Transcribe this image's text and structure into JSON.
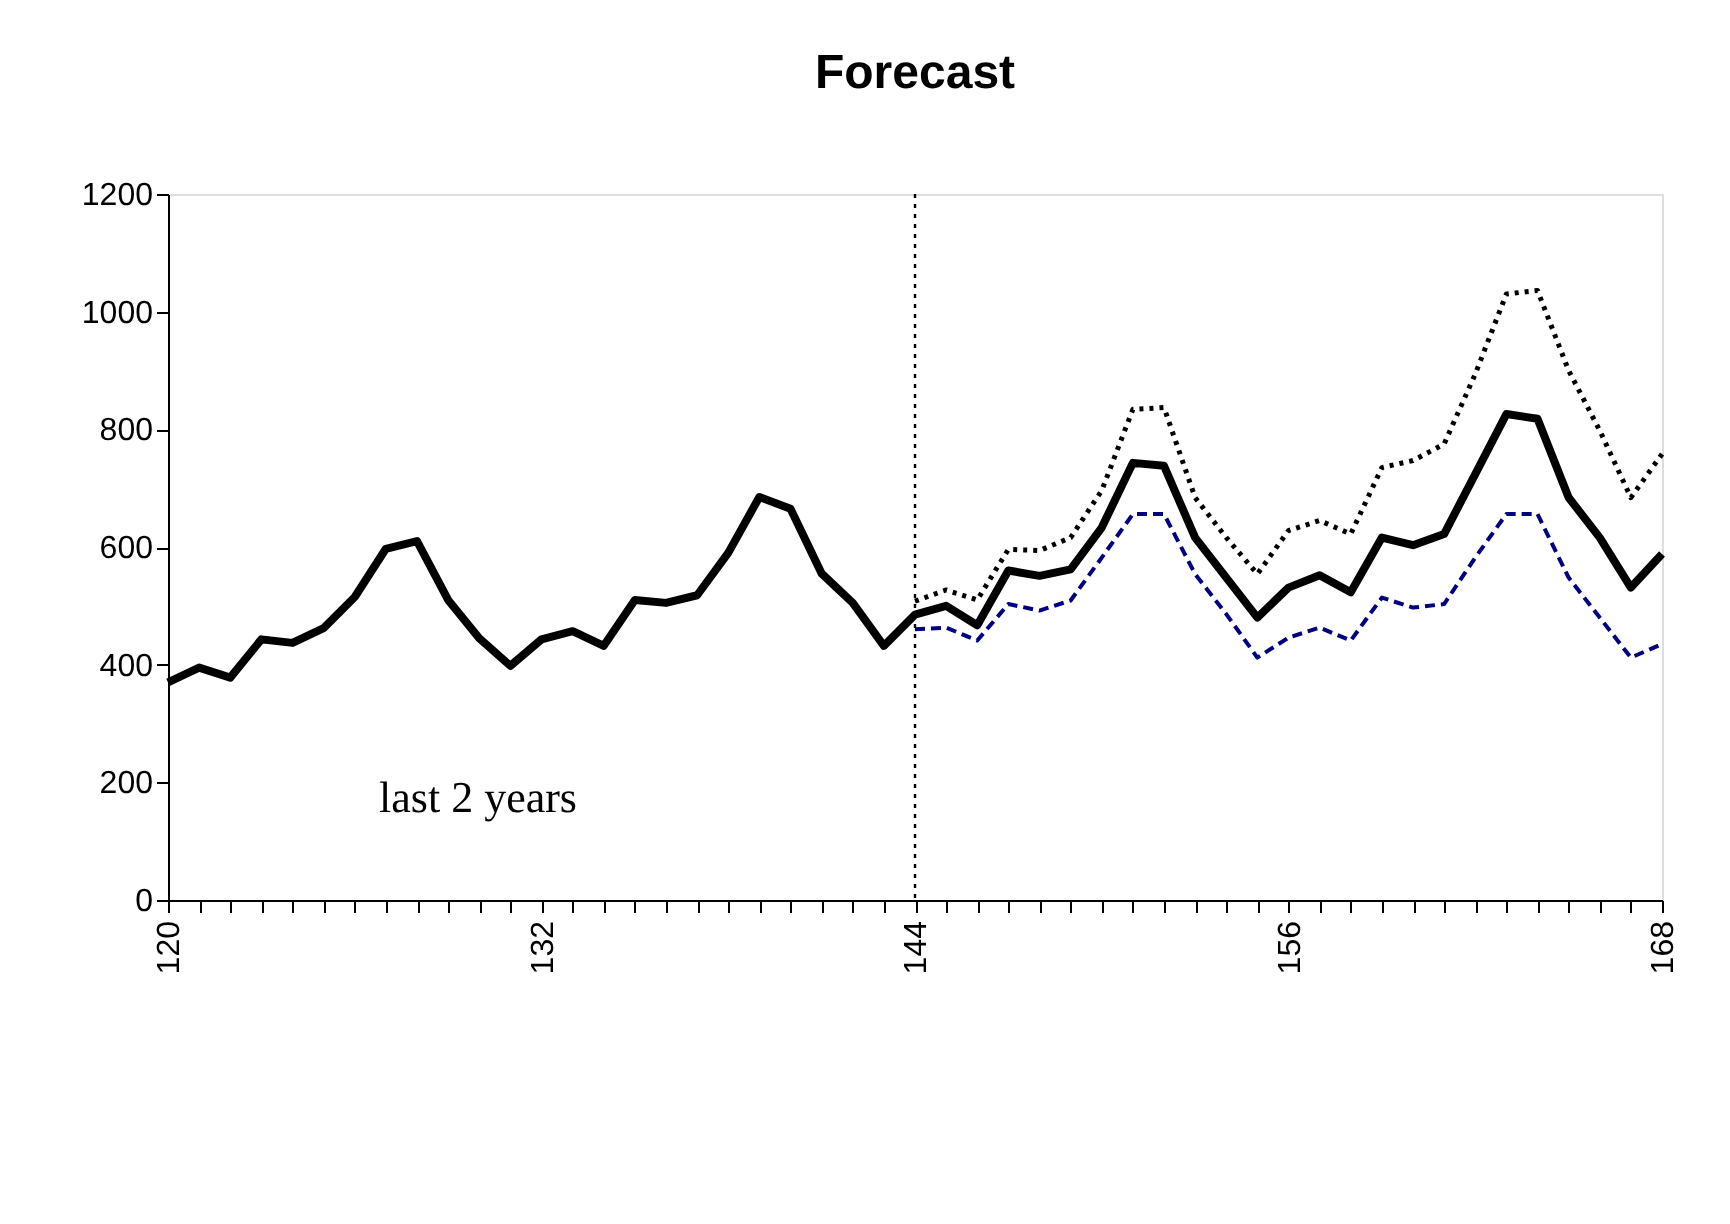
{
  "chart_data": {
    "type": "line",
    "title": "Forecast",
    "x": [
      120,
      121,
      122,
      123,
      124,
      125,
      126,
      127,
      128,
      129,
      130,
      131,
      132,
      133,
      134,
      135,
      136,
      137,
      138,
      139,
      140,
      141,
      142,
      143,
      144,
      145,
      146,
      147,
      148,
      149,
      150,
      151,
      152,
      153,
      154,
      155,
      156,
      157,
      158,
      159,
      160,
      161,
      162,
      163,
      164,
      165,
      166,
      167,
      168
    ],
    "series": [
      {
        "color": "#000000",
        "line_style": "solid",
        "values": [
          370,
          395,
          378,
          443,
          437,
          462,
          515,
          597,
          610,
          510,
          445,
          398,
          443,
          457,
          432,
          510,
          505,
          518,
          590,
          685,
          665,
          555,
          505,
          432,
          485,
          500,
          467,
          560,
          551,
          562,
          633,
          743,
          738,
          616,
          548,
          480,
          531,
          552,
          523,
          616,
          603,
          622,
          724,
          826,
          818,
          684,
          616,
          531,
          588
        ]
      },
      {
        "color": "#000000",
        "line_style": "dotted",
        "x": [
          144,
          145,
          146,
          147,
          148,
          149,
          150,
          151,
          152,
          153,
          154,
          155,
          156,
          157,
          158,
          159,
          160,
          161,
          162,
          163,
          164,
          165,
          166,
          167,
          168
        ],
        "values": [
          508,
          527,
          510,
          596,
          594,
          616,
          696,
          834,
          837,
          684,
          616,
          554,
          628,
          645,
          622,
          735,
          747,
          775,
          894,
          1030,
          1036,
          900,
          798,
          684,
          758
        ]
      },
      {
        "color": "#000080",
        "line_style": "dashed",
        "x": [
          144,
          145,
          146,
          147,
          148,
          149,
          150,
          151,
          152,
          153,
          154,
          155,
          156,
          157,
          158,
          159,
          160,
          161,
          162,
          163,
          164,
          165,
          166,
          167,
          168
        ],
        "values": [
          460,
          463,
          441,
          503,
          492,
          509,
          582,
          656,
          656,
          554,
          486,
          412,
          446,
          463,
          441,
          514,
          497,
          503,
          582,
          656,
          656,
          548,
          480,
          412,
          435
        ]
      }
    ],
    "xlim": [
      120,
      168
    ],
    "xticks": [
      120,
      {
        "value": 121,
        "label": null
      },
      {
        "value": 122,
        "label": null
      },
      {
        "value": 123,
        "label": null
      },
      {
        "value": 124,
        "label": null
      },
      {
        "value": 125,
        "label": null
      },
      {
        "value": 126,
        "label": null
      },
      {
        "value": 127,
        "label": null
      },
      {
        "value": 128,
        "label": null
      },
      {
        "value": 129,
        "label": null
      },
      {
        "value": 130,
        "label": null
      },
      {
        "value": 131,
        "label": null
      },
      132,
      {
        "value": 133,
        "label": null
      },
      {
        "value": 134,
        "label": null
      },
      {
        "value": 135,
        "label": null
      },
      {
        "value": 136,
        "label": null
      },
      {
        "value": 137,
        "label": null
      },
      {
        "value": 138,
        "label": null
      },
      {
        "value": 139,
        "label": null
      },
      {
        "value": 140,
        "label": null
      },
      {
        "value": 141,
        "label": null
      },
      {
        "value": 142,
        "label": null
      },
      {
        "value": 143,
        "label": null
      },
      144,
      {
        "value": 145,
        "label": null
      },
      {
        "value": 146,
        "label": null
      },
      {
        "value": 147,
        "label": null
      },
      {
        "value": 148,
        "label": null
      },
      {
        "value": 149,
        "label": null
      },
      {
        "value": 150,
        "label": null
      },
      {
        "value": 151,
        "label": null
      },
      {
        "value": 152,
        "label": null
      },
      {
        "value": 153,
        "label": null
      },
      {
        "value": 154,
        "label": null
      },
      {
        "value": 155,
        "label": null
      },
      156,
      {
        "value": 157,
        "label": null
      },
      {
        "value": 158,
        "label": null
      },
      {
        "value": 159,
        "label": null
      },
      {
        "value": 160,
        "label": null
      },
      {
        "value": 161,
        "label": null
      },
      {
        "value": 162,
        "label": null
      },
      {
        "value": 163,
        "label": null
      },
      {
        "value": 164,
        "label": null
      },
      {
        "value": 165,
        "label": null
      },
      {
        "value": 166,
        "label": null
      },
      {
        "value": 167,
        "label": null
      },
      168
    ],
    "ylim": [
      0,
      1200
    ],
    "yticks": [
      0,
      200,
      400,
      600,
      800,
      1000,
      1200
    ],
    "grid": false,
    "marker": "none",
    "ref_lines": [
      {
        "axis": "x",
        "value": 144,
        "line_style": "dotted",
        "color": "#000000"
      }
    ],
    "annotations": [
      "last 2 years"
    ]
  }
}
